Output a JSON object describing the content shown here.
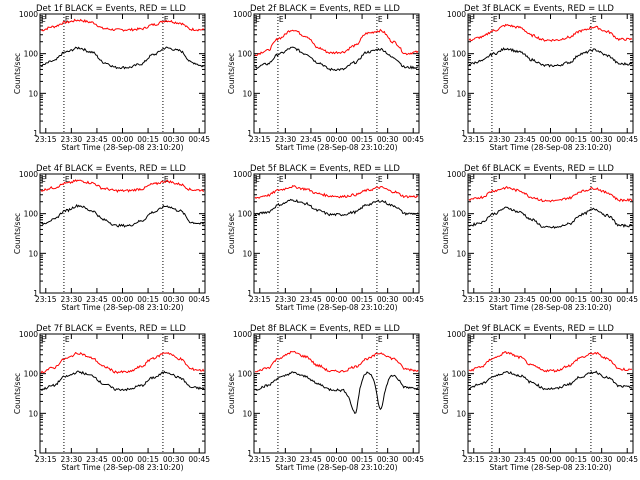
{
  "chart_data": [
    {
      "type": "line",
      "title": "Det 1f BLACK = Events, RED = LLD",
      "xlabel": "Start Time (28-Sep-08 23:10:20)",
      "ylabel": "Counts/sec",
      "yscale": "log",
      "ylim": [
        1,
        1000
      ],
      "xticks": [
        "23:15",
        "23:30",
        "23:45",
        "00:00",
        "00:15",
        "00:30",
        "00:45"
      ],
      "yticks": [
        "1",
        "10",
        "100",
        "1000"
      ],
      "event_marks": [
        "E",
        "E"
      ],
      "series": [
        {
          "color": "#ff0000",
          "values": [
            390,
            480,
            620,
            700,
            620,
            430,
            400,
            400,
            420,
            540,
            680,
            600,
            410,
            400
          ]
        },
        {
          "color": "#000000",
          "values": [
            50,
            65,
            110,
            140,
            110,
            60,
            45,
            45,
            55,
            95,
            140,
            120,
            60,
            48
          ]
        }
      ]
    },
    {
      "type": "line",
      "title": "Det 2f BLACK = Events, RED = LLD",
      "xlabel": "Start Time (28-Sep-08 23:10:20)",
      "ylabel": "Counts/sec",
      "yscale": "log",
      "ylim": [
        1,
        1000
      ],
      "xticks": [
        "23:15",
        "23:30",
        "23:45",
        "00:00",
        "00:15",
        "00:30",
        "00:45"
      ],
      "yticks": [
        "1",
        "10",
        "100",
        "1000"
      ],
      "event_marks": [
        "E",
        "E"
      ],
      "series": [
        {
          "color": "#ff0000",
          "values": [
            95,
            120,
            250,
            400,
            280,
            140,
            105,
            110,
            160,
            330,
            380,
            200,
            100,
            110
          ]
        },
        {
          "color": "#000000",
          "values": [
            45,
            55,
            100,
            140,
            100,
            60,
            40,
            40,
            60,
            110,
            130,
            80,
            45,
            45
          ]
        }
      ]
    },
    {
      "type": "line",
      "title": "Det 3f BLACK = Events, RED = LLD",
      "xlabel": "Start Time (28-Sep-08 23:10:20)",
      "ylabel": "Counts/sec",
      "yscale": "log",
      "ylim": [
        1,
        1000
      ],
      "xticks": [
        "23:15",
        "23:30",
        "23:45",
        "00:00",
        "00:15",
        "00:30",
        "00:45"
      ],
      "yticks": [
        "1",
        "10",
        "100",
        "1000"
      ],
      "event_marks": [
        "E",
        "E"
      ],
      "series": [
        {
          "color": "#ff0000",
          "values": [
            220,
            260,
            380,
            520,
            460,
            290,
            220,
            220,
            260,
            380,
            470,
            360,
            230,
            230
          ]
        },
        {
          "color": "#000000",
          "values": [
            55,
            65,
            100,
            135,
            110,
            70,
            50,
            50,
            60,
            100,
            125,
            90,
            55,
            55
          ]
        }
      ]
    },
    {
      "type": "line",
      "title": "Det 4f BLACK = Events, RED = LLD",
      "xlabel": "Start Time (28-Sep-08 23:10:20)",
      "ylabel": "Counts/sec",
      "yscale": "log",
      "ylim": [
        1,
        1000
      ],
      "xticks": [
        "23:15",
        "23:30",
        "23:45",
        "00:00",
        "00:15",
        "00:30",
        "00:45"
      ],
      "yticks": [
        "1",
        "10",
        "100",
        "1000"
      ],
      "event_marks": [
        "E",
        "E"
      ],
      "series": [
        {
          "color": "#ff0000",
          "values": [
            390,
            450,
            580,
            680,
            600,
            430,
            380,
            380,
            420,
            560,
            660,
            560,
            400,
            390
          ]
        },
        {
          "color": "#000000",
          "values": [
            55,
            70,
            120,
            160,
            120,
            70,
            50,
            50,
            65,
            110,
            155,
            120,
            60,
            55
          ]
        }
      ]
    },
    {
      "type": "line",
      "title": "Det 5f BLACK = Events, RED = LLD",
      "xlabel": "Start Time (28-Sep-08 23:10:20)",
      "ylabel": "Counts/sec",
      "yscale": "log",
      "ylim": [
        1,
        1000
      ],
      "xticks": [
        "23:15",
        "23:30",
        "23:45",
        "00:00",
        "00:15",
        "00:30",
        "00:45"
      ],
      "yticks": [
        "1",
        "10",
        "100",
        "1000"
      ],
      "event_marks": [
        "E",
        "E"
      ],
      "series": [
        {
          "color": "#ff0000",
          "values": [
            250,
            290,
            400,
            480,
            420,
            320,
            280,
            270,
            300,
            390,
            460,
            360,
            270,
            270
          ]
        },
        {
          "color": "#000000",
          "values": [
            95,
            110,
            170,
            220,
            180,
            120,
            95,
            95,
            110,
            170,
            210,
            160,
            100,
            100
          ]
        }
      ]
    },
    {
      "type": "line",
      "title": "Det 6f BLACK = Events, RED = LLD",
      "xlabel": "Start Time (28-Sep-08 23:10:20)",
      "ylabel": "Counts/sec",
      "yscale": "log",
      "ylim": [
        1,
        1000
      ],
      "xticks": [
        "23:15",
        "23:30",
        "23:45",
        "00:00",
        "00:15",
        "00:30",
        "00:45"
      ],
      "yticks": [
        "1",
        "10",
        "100",
        "1000"
      ],
      "event_marks": [
        "E",
        "E"
      ],
      "series": [
        {
          "color": "#ff0000",
          "values": [
            220,
            260,
            380,
            450,
            380,
            260,
            210,
            210,
            250,
            370,
            440,
            340,
            220,
            220
          ]
        },
        {
          "color": "#000000",
          "values": [
            50,
            60,
            100,
            140,
            110,
            70,
            45,
            45,
            55,
            95,
            130,
            90,
            50,
            50
          ]
        }
      ]
    },
    {
      "type": "line",
      "title": "Det 7f BLACK = Events, RED = LLD",
      "xlabel": "Start Time (28-Sep-08 23:10:20)",
      "ylabel": "Counts/sec",
      "yscale": "log",
      "ylim": [
        1,
        1000
      ],
      "xticks": [
        "23:15",
        "23:30",
        "23:45",
        "00:00",
        "00:15",
        "00:30",
        "00:45"
      ],
      "yticks": [
        "1",
        "10",
        "100",
        "1000"
      ],
      "event_marks": [
        "E",
        "E"
      ],
      "series": [
        {
          "color": "#ff0000",
          "values": [
            110,
            140,
            240,
            330,
            250,
            150,
            110,
            110,
            150,
            250,
            340,
            240,
            130,
            120
          ]
        },
        {
          "color": "#000000",
          "values": [
            40,
            50,
            85,
            110,
            90,
            55,
            40,
            40,
            50,
            80,
            110,
            80,
            45,
            42
          ]
        }
      ]
    },
    {
      "type": "line",
      "title": "Det 8f BLACK = Events, RED = LLD",
      "xlabel": "Start Time (28-Sep-08 23:10:20)",
      "ylabel": "Counts/sec",
      "yscale": "log",
      "ylim": [
        1,
        1000
      ],
      "xticks": [
        "23:15",
        "23:30",
        "23:45",
        "00:00",
        "00:15",
        "00:30",
        "00:45"
      ],
      "yticks": [
        "1",
        "10",
        "100",
        "1000"
      ],
      "event_marks": [
        "E",
        "E"
      ],
      "series": [
        {
          "color": "#ff0000",
          "values": [
            110,
            140,
            250,
            350,
            270,
            160,
            115,
            115,
            150,
            240,
            330,
            240,
            130,
            120
          ]
        },
        {
          "color": "#000000",
          "values": [
            40,
            50,
            80,
            105,
            85,
            55,
            40,
            38,
            10,
            110,
            12,
            90,
            45,
            42
          ]
        }
      ]
    },
    {
      "type": "line",
      "title": "Det 9f BLACK = Events, RED = LLD",
      "xlabel": "Start Time (28-Sep-08 23:10:20)",
      "ylabel": "Counts/sec",
      "yscale": "log",
      "ylim": [
        1,
        1000
      ],
      "xticks": [
        "23:15",
        "23:30",
        "23:45",
        "00:00",
        "00:15",
        "00:30",
        "00:45"
      ],
      "yticks": [
        "1",
        "10",
        "100",
        "1000"
      ],
      "event_marks": [
        "E",
        "E"
      ],
      "series": [
        {
          "color": "#ff0000",
          "values": [
            120,
            150,
            250,
            340,
            260,
            160,
            120,
            120,
            160,
            260,
            330,
            240,
            130,
            125
          ]
        },
        {
          "color": "#000000",
          "values": [
            45,
            55,
            85,
            110,
            90,
            60,
            42,
            42,
            55,
            85,
            110,
            80,
            48,
            45
          ]
        }
      ]
    }
  ]
}
